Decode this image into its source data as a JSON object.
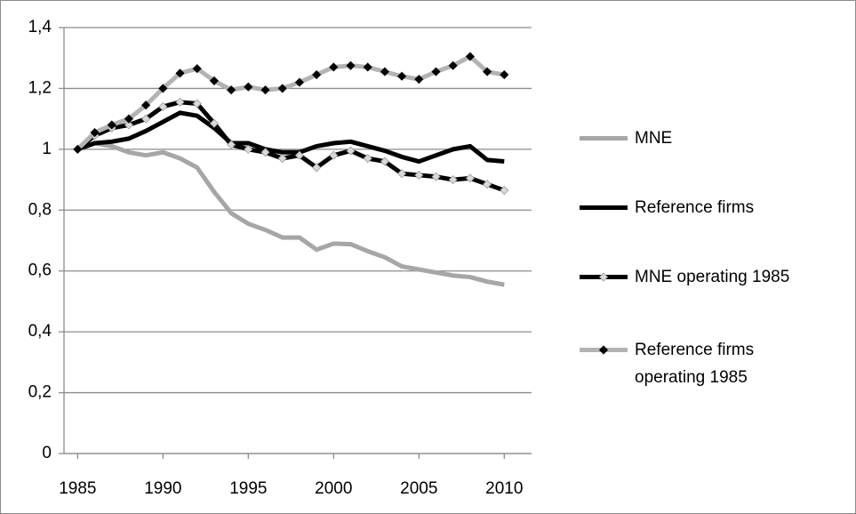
{
  "chart_data": {
    "type": "line",
    "x": [
      1985,
      1986,
      1987,
      1988,
      1989,
      1990,
      1991,
      1992,
      1993,
      1994,
      1995,
      1996,
      1997,
      1998,
      1999,
      2000,
      2001,
      2002,
      2003,
      2004,
      2005,
      2006,
      2007,
      2008,
      2009,
      2010
    ],
    "series": [
      {
        "name": "MNE",
        "color": "#a6a6a6",
        "marker": false,
        "values": [
          1.0,
          1.02,
          1.01,
          0.99,
          0.98,
          0.99,
          0.97,
          0.94,
          0.86,
          0.79,
          0.755,
          0.735,
          0.71,
          0.71,
          0.67,
          0.69,
          0.688,
          0.665,
          0.645,
          0.615,
          0.605,
          0.595,
          0.585,
          0.58,
          0.565,
          0.555
        ]
      },
      {
        "name": "Reference firms",
        "color": "#000000",
        "marker": false,
        "values": [
          1.0,
          1.02,
          1.025,
          1.035,
          1.06,
          1.09,
          1.12,
          1.11,
          1.07,
          1.02,
          1.02,
          1.0,
          0.99,
          0.99,
          1.01,
          1.02,
          1.025,
          1.01,
          0.995,
          0.975,
          0.96,
          0.98,
          1.0,
          1.01,
          0.965,
          0.96
        ]
      },
      {
        "name": "MNE operating 1985",
        "color": "#000000",
        "marker": true,
        "marker_color": "#d9d9d9",
        "values": [
          1.0,
          1.045,
          1.07,
          1.08,
          1.1,
          1.14,
          1.155,
          1.15,
          1.085,
          1.015,
          1.0,
          0.99,
          0.97,
          0.98,
          0.94,
          0.98,
          0.995,
          0.97,
          0.96,
          0.92,
          0.915,
          0.91,
          0.9,
          0.905,
          0.885,
          0.865
        ]
      },
      {
        "name": "Reference firms operating 1985",
        "color": "#b3b3b3",
        "marker": true,
        "marker_color": "#000000",
        "values": [
          1.0,
          1.055,
          1.08,
          1.1,
          1.145,
          1.2,
          1.25,
          1.265,
          1.225,
          1.195,
          1.205,
          1.195,
          1.2,
          1.22,
          1.245,
          1.27,
          1.275,
          1.27,
          1.255,
          1.24,
          1.23,
          1.255,
          1.275,
          1.305,
          1.255,
          1.245
        ]
      }
    ],
    "xlim": [
      1984.2,
      2011.6
    ],
    "xticks": [
      1985,
      1990,
      1995,
      2000,
      2005,
      2010
    ],
    "ylim": [
      0,
      1.4
    ],
    "yticks": [
      0,
      {
        "value": 0.2,
        "label": "0,2"
      },
      {
        "value": 0.4,
        "label": "0,4"
      },
      {
        "value": 0.6,
        "label": "0,6"
      },
      {
        "value": 0.8,
        "label": "0,8"
      },
      1,
      {
        "value": 1.2,
        "label": "1,2"
      },
      {
        "value": 1.4,
        "label": "1,4"
      }
    ],
    "grid": true,
    "legend": "right"
  }
}
